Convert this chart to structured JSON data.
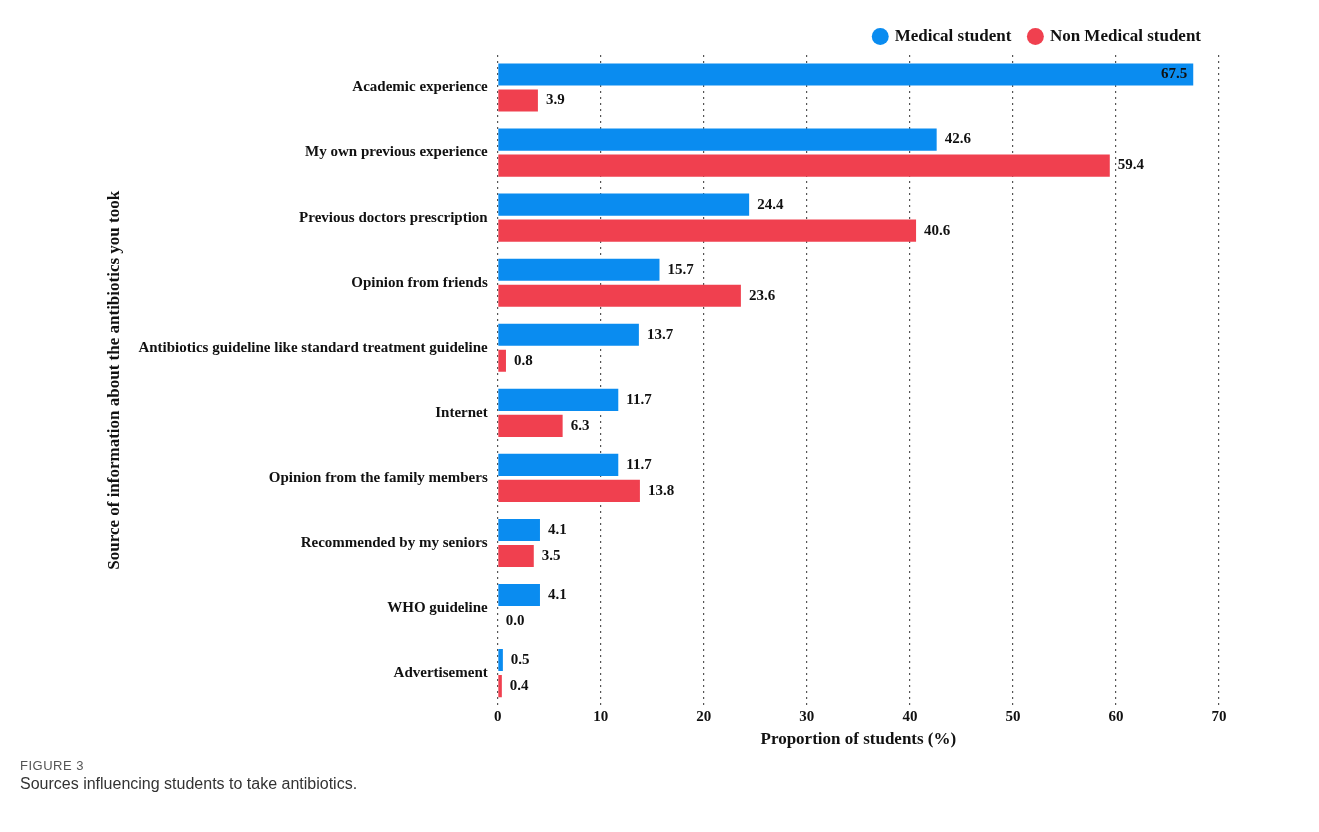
{
  "chart_data": {
    "type": "bar",
    "orientation": "horizontal",
    "ylabel": "Source of information about the antibiotics you took",
    "xlabel": "Proportion of students (%)",
    "categories": [
      "Academic experience",
      "My own previous experience",
      "Previous doctors prescription",
      "Opinion from friends",
      "Antibiotics guideline like standard treatment guideline",
      "Internet",
      "Opinion from the family members",
      "Recommended by my seniors",
      "WHO guideline",
      "Advertisement"
    ],
    "series": [
      {
        "name": "Medical student",
        "color": "#0a8cf0",
        "values": [
          67.5,
          42.6,
          24.4,
          15.7,
          13.7,
          11.7,
          11.7,
          4.1,
          4.1,
          0.5
        ],
        "value_labels": [
          "67.5",
          "42.6",
          "24.4",
          "15.7",
          "13.7",
          "11.7",
          "11.7",
          "4.1",
          "4.1",
          "0.5"
        ]
      },
      {
        "name": "Non Medical student",
        "color": "#f0404f",
        "values": [
          3.9,
          59.4,
          40.6,
          23.6,
          0.8,
          6.3,
          13.8,
          3.5,
          0.0,
          0.4
        ],
        "value_labels": [
          "3.9",
          "59.4",
          "40.6",
          "23.6",
          "0.8",
          "6.3",
          "13.8",
          "3.5",
          "0.0",
          "0.4"
        ]
      }
    ],
    "xlim": [
      0,
      70
    ],
    "xticks": [
      0,
      10,
      20,
      30,
      40,
      50,
      60,
      70
    ],
    "grid": "x",
    "legend": "top right",
    "annotations": [
      "FIGURE 3",
      "Sources influencing students to take antibiotics."
    ]
  }
}
